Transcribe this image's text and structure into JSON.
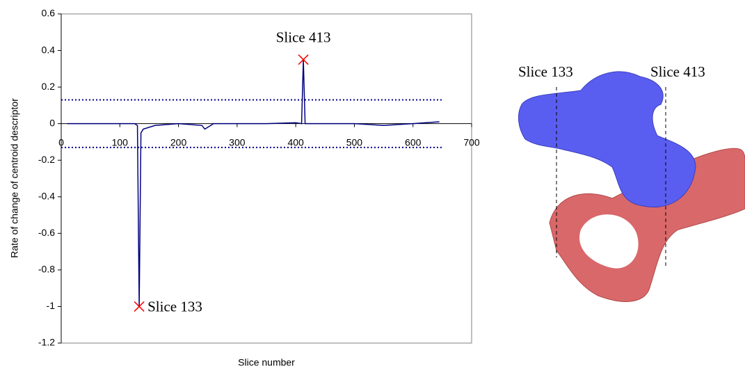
{
  "chart_data": {
    "type": "line",
    "y_label": "Rate of change of centroid descriptor",
    "x_label": "Slice number",
    "x": [
      10,
      50,
      100,
      125,
      130,
      133,
      136,
      140,
      160,
      200,
      240,
      245,
      260,
      300,
      350,
      400,
      410,
      413,
      416,
      430,
      500,
      550,
      600,
      645
    ],
    "series": [
      {
        "color": "#000080",
        "values": [
          0,
          0,
          0,
          0,
          -0.01,
          -1,
          -0.05,
          -0.03,
          -0.01,
          0,
          -0.01,
          -0.03,
          0,
          0,
          0,
          0.005,
          0,
          0.35,
          0,
          0,
          0,
          -0.01,
          0,
          0.01
        ]
      }
    ],
    "thresholds": [
      0.13,
      -0.13
    ],
    "threshold_color": "#00008b",
    "markers": [
      {
        "x": 133,
        "y": -1,
        "label": "Slice 133"
      },
      {
        "x": 413,
        "y": 0.35,
        "label": "Slice 413"
      }
    ],
    "marker_color": "#ff0000",
    "xlim": [
      0,
      700
    ],
    "xticks": [
      0,
      100,
      200,
      300,
      400,
      500,
      600,
      700
    ],
    "ylim": [
      -1.2,
      0.6
    ],
    "yticks": [
      -1.2,
      -1,
      -0.8,
      -0.6,
      -0.4,
      -0.2,
      0,
      0.2,
      0.4,
      0.6
    ]
  },
  "illustration": {
    "labels": [
      "Slice 133",
      "Slice 413"
    ]
  }
}
